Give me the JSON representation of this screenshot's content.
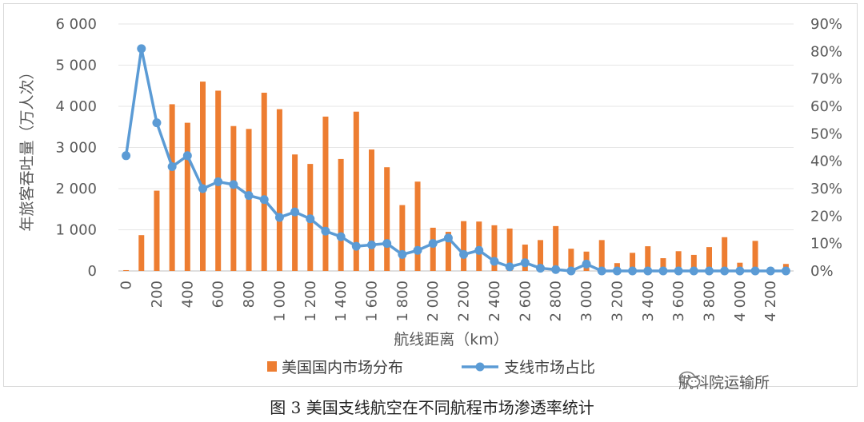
{
  "chart_data": {
    "type": "bar+line",
    "xlabel": "航线距离（km）",
    "ylabel_left": "年旅客吞吐量（万人次）",
    "ylim_left": [
      0,
      6000
    ],
    "ylim_right": [
      0,
      0.9
    ],
    "left_ticks": [
      "0",
      "1 000",
      "2 000",
      "3 000",
      "4 000",
      "5 000",
      "6 000"
    ],
    "right_ticks": [
      "0%",
      "10%",
      "20%",
      "30%",
      "40%",
      "50%",
      "60%",
      "70%",
      "80%",
      "90%"
    ],
    "x": [
      0,
      100,
      200,
      300,
      400,
      500,
      600,
      700,
      800,
      900,
      1000,
      1100,
      1200,
      1300,
      1400,
      1500,
      1600,
      1700,
      1800,
      1900,
      2000,
      2100,
      2200,
      2300,
      2400,
      2500,
      2600,
      2700,
      2800,
      2900,
      3000,
      3100,
      3200,
      3300,
      3400,
      3500,
      3600,
      3700,
      3800,
      3900,
      4000,
      4100,
      4200,
      4300
    ],
    "x_tick_labels": [
      "0",
      "200",
      "400",
      "600",
      "800",
      "1 000",
      "1 200",
      "1 400",
      "1 600",
      "1 800",
      "2 000",
      "2 200",
      "2 400",
      "2 600",
      "2 800",
      "3 000",
      "3 200",
      "3 400",
      "3 600",
      "3 800",
      "4 000",
      "4 200"
    ],
    "x_tick_values": [
      0,
      200,
      400,
      600,
      800,
      1000,
      1200,
      1400,
      1600,
      1800,
      2000,
      2200,
      2400,
      2600,
      2800,
      3000,
      3200,
      3400,
      3600,
      3800,
      4000,
      4200
    ],
    "series": [
      {
        "name": "美国国内市场分布",
        "kind": "bar",
        "axis": "left",
        "color": "#ED7D31",
        "values": [
          20,
          870,
          1950,
          4050,
          3600,
          4600,
          4380,
          3520,
          3450,
          4330,
          3930,
          2830,
          2600,
          3750,
          2720,
          3870,
          2950,
          2520,
          1600,
          2170,
          1050,
          950,
          1210,
          1200,
          1110,
          1030,
          640,
          750,
          1090,
          540,
          470,
          750,
          190,
          440,
          600,
          310,
          480,
          390,
          580,
          820,
          200,
          730,
          0,
          170
        ]
      },
      {
        "name": "支线市场占比",
        "kind": "line",
        "axis": "right",
        "color": "#5B9BD5",
        "values": [
          0.42,
          0.81,
          0.54,
          0.38,
          0.42,
          0.3,
          0.325,
          0.315,
          0.275,
          0.26,
          0.195,
          0.215,
          0.19,
          0.145,
          0.125,
          0.09,
          0.095,
          0.1,
          0.06,
          0.075,
          0.1,
          0.12,
          0.06,
          0.075,
          0.035,
          0.015,
          0.03,
          0.01,
          0.005,
          0.0,
          0.025,
          0.0,
          0.0,
          0.0,
          0.0,
          0.0,
          0.0,
          0.0,
          0.0,
          0.0,
          0.0,
          0.0,
          0.0,
          0.0
        ]
      }
    ],
    "legend_position": "bottom"
  },
  "caption": "图 3  美国支线航空在不同航程市场渗透率统计",
  "watermark": "航科院运输所",
  "watermark_icon": "wechat-icon"
}
